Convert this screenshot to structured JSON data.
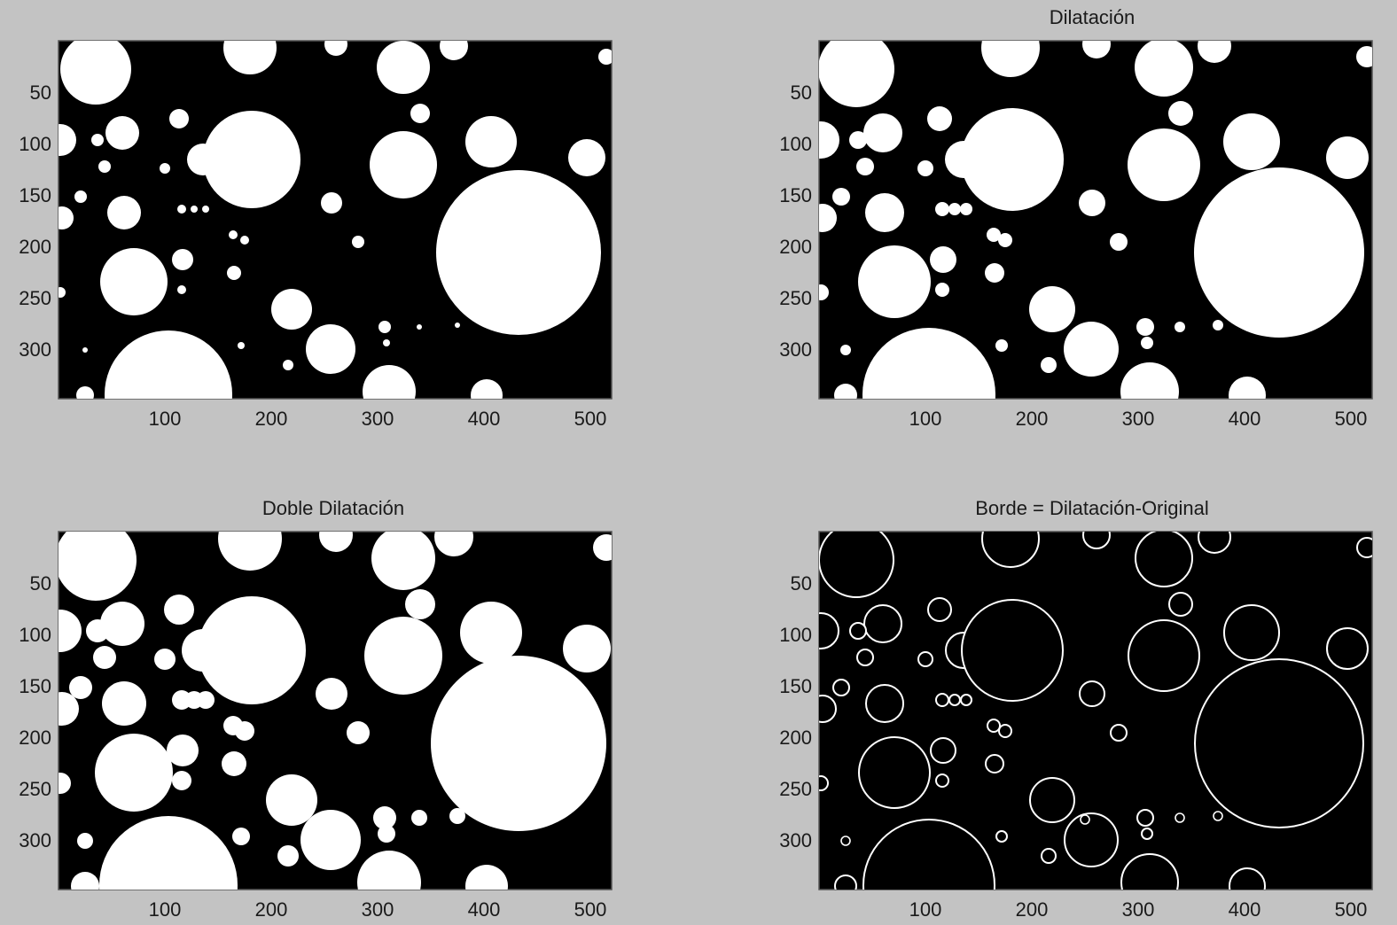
{
  "window": {
    "background": "#c3c3c3"
  },
  "panels": [
    {
      "id": "original",
      "title": "",
      "style": "filled",
      "xticks": [
        "100",
        "200",
        "300",
        "400",
        "500"
      ],
      "yticks": [
        "50",
        "100",
        "150",
        "200",
        "250",
        "300"
      ],
      "dilation": 0
    },
    {
      "id": "dilatacion",
      "title": "Dilatación",
      "style": "filled",
      "xticks": [
        "100",
        "200",
        "300",
        "400",
        "500"
      ],
      "yticks": [
        "50",
        "100",
        "150",
        "200",
        "250",
        "300"
      ],
      "dilation": 1
    },
    {
      "id": "doble-dilatacion",
      "title": "Doble Dilatación",
      "style": "filled",
      "xticks": [
        "100",
        "200",
        "300",
        "400",
        "500"
      ],
      "yticks": [
        "50",
        "100",
        "150",
        "200",
        "250",
        "300"
      ],
      "dilation": 2
    },
    {
      "id": "borde",
      "title": "Borde = Dilatación-Original",
      "style": "outline",
      "xticks": [
        "100",
        "200",
        "300",
        "400",
        "500"
      ],
      "yticks": [
        "50",
        "100",
        "150",
        "200",
        "250",
        "300"
      ],
      "dilation": 1
    }
  ],
  "colors": {
    "foreground": "#ffffff",
    "image_background": "#000000"
  }
}
